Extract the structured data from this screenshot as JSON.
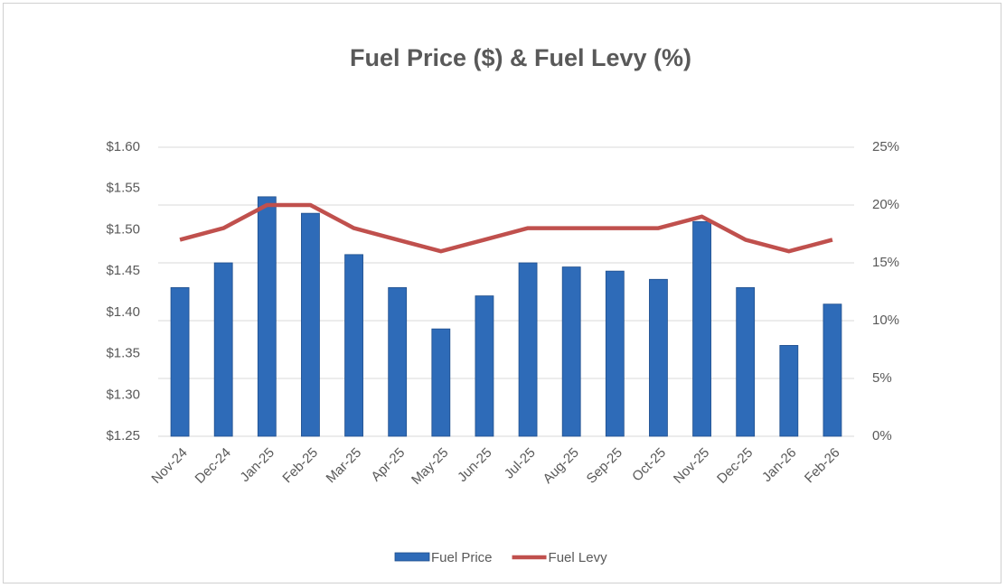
{
  "chart_data": {
    "type": "bar-line",
    "title": "Fuel Price ($) & Fuel Levy (%)",
    "categories": [
      "Nov-24",
      "Dec-24",
      "Jan-25",
      "Feb-25",
      "Mar-25",
      "Apr-25",
      "May-25",
      "Jun-25",
      "Jul-25",
      "Aug-25",
      "Sep-25",
      "Oct-25",
      "Nov-25",
      "Dec-25",
      "Jan-26",
      "Feb-26"
    ],
    "series": [
      {
        "name": "Fuel Price",
        "color": "#2e6bb8",
        "type": "bar",
        "axis": "y",
        "values": [
          1.43,
          1.46,
          1.54,
          1.52,
          1.47,
          1.43,
          1.38,
          1.42,
          1.46,
          1.455,
          1.45,
          1.44,
          1.51,
          1.43,
          1.36,
          1.41
        ]
      },
      {
        "name": "Fuel Levy",
        "color": "#c0504d",
        "type": "line",
        "axis": "y2",
        "values": [
          17,
          18,
          20,
          20,
          18,
          17,
          16,
          17,
          18,
          18,
          18,
          18,
          19,
          17,
          16,
          17
        ]
      }
    ],
    "ylim": [
      1.25,
      1.6
    ],
    "yticks": [
      {
        "value": 1.25,
        "label": "$1.25"
      },
      {
        "value": 1.3,
        "label": "$1.30"
      },
      {
        "value": 1.35,
        "label": "$1.35"
      },
      {
        "value": 1.4,
        "label": "$1.40"
      },
      {
        "value": 1.45,
        "label": "$1.45"
      },
      {
        "value": 1.5,
        "label": "$1.50"
      },
      {
        "value": 1.55,
        "label": "$1.55"
      },
      {
        "value": 1.6,
        "label": "$1.60"
      }
    ],
    "y2lim": [
      0,
      25
    ],
    "y2ticks": [
      {
        "value": 0,
        "label": "0%"
      },
      {
        "value": 5,
        "label": "5%"
      },
      {
        "value": 10,
        "label": "10%"
      },
      {
        "value": 15,
        "label": "15%"
      },
      {
        "value": 20,
        "label": "20%"
      },
      {
        "value": 25,
        "label": "25%"
      }
    ],
    "grid": true,
    "grid_axis": "y2",
    "legend": "bottom"
  }
}
